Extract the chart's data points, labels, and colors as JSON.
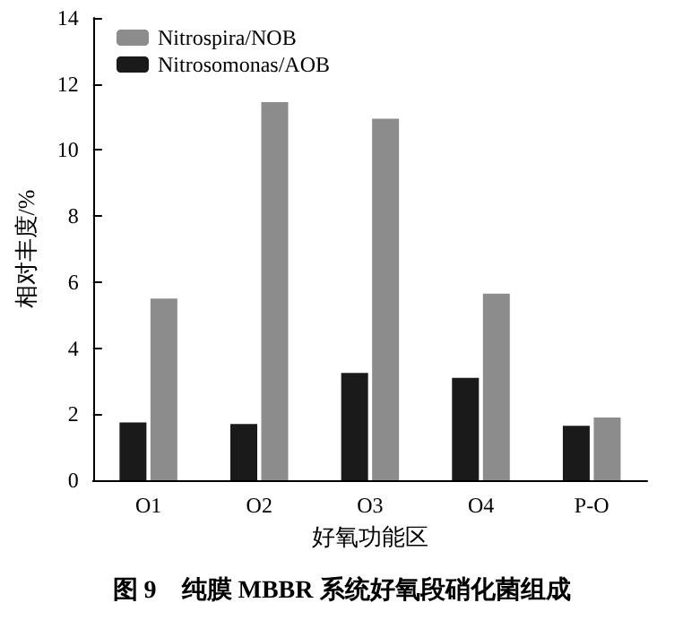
{
  "chart_data": {
    "type": "bar",
    "title": "图 9　纯膜 MBBR 系统好氧段硝化菌组成",
    "xlabel": "好氧功能区",
    "ylabel": "相对丰度/%",
    "categories": [
      "O1",
      "O2",
      "O3",
      "O4",
      "P-O"
    ],
    "series": [
      {
        "name": "Nitrosomonas/AOB",
        "color": "#1a1a1a",
        "values": [
          1.75,
          1.7,
          3.25,
          3.1,
          1.65
        ]
      },
      {
        "name": "Nitrospira/NOB",
        "color": "#8c8c8c",
        "values": [
          5.5,
          11.45,
          10.95,
          5.65,
          1.9
        ]
      }
    ],
    "ylim": [
      0,
      14
    ],
    "yticks": [
      0,
      2,
      4,
      6,
      8,
      10,
      12,
      14
    ],
    "grid": false,
    "legend": "top left"
  }
}
